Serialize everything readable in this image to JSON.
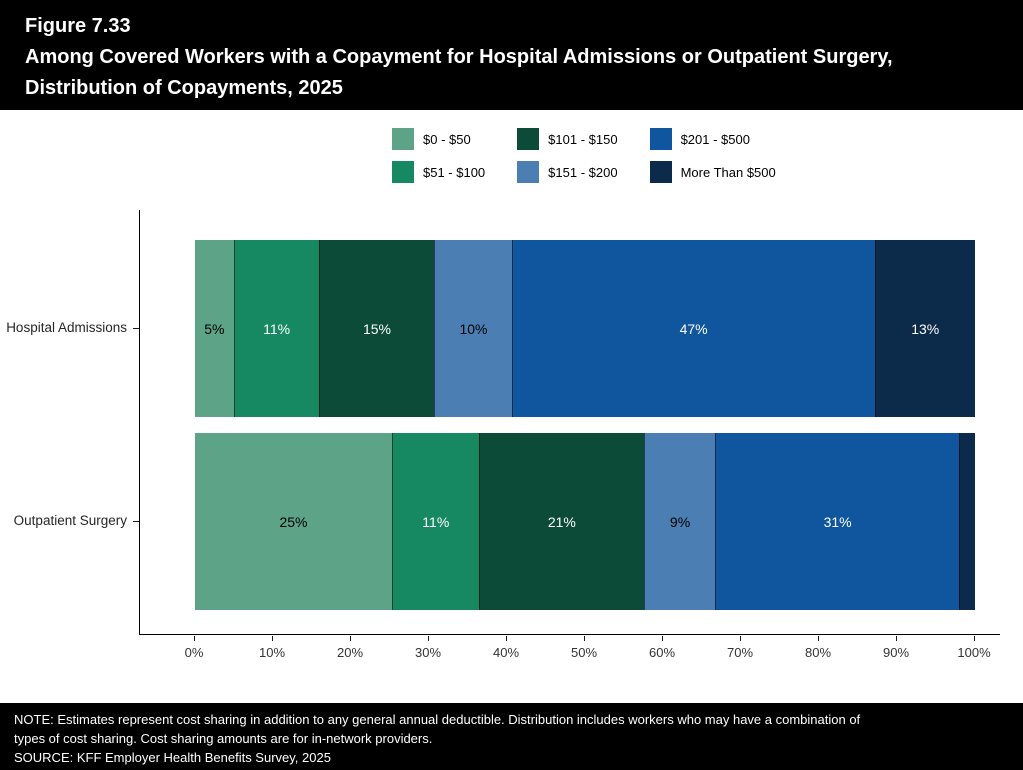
{
  "header": {
    "figure_label": "Figure 7.33",
    "title_line1": "Among Covered Workers with a Copayment for Hospital Admissions or Outpatient Surgery,",
    "title_line2": "Distribution of Copayments, 2025"
  },
  "chart_data": {
    "type": "bar",
    "orientation": "horizontal",
    "stacked": true,
    "grid": false,
    "legend_position": "top",
    "x_axis": {
      "min": 0,
      "max": 100,
      "tick_labels": [
        "0%",
        "10%",
        "20%",
        "30%",
        "40%",
        "50%",
        "60%",
        "70%",
        "80%",
        "90%",
        "100%"
      ]
    },
    "categories": [
      "Hospital Admissions",
      "Outpatient Surgery"
    ],
    "series": [
      {
        "name": "$0 - $50",
        "color": "#5CA388",
        "values": [
          5,
          25
        ]
      },
      {
        "name": "$51 - $100",
        "color": "#178962",
        "values": [
          11,
          11
        ]
      },
      {
        "name": "$101 - $150",
        "color": "#0D4B39",
        "values": [
          15,
          21
        ]
      },
      {
        "name": "$151 - $200",
        "color": "#4B7EB3",
        "values": [
          10,
          9
        ]
      },
      {
        "name": "$201 - $500",
        "color": "#0F569E",
        "values": [
          47,
          31
        ]
      },
      {
        "name": "More Than $500",
        "color": "#0C2B4B",
        "values": [
          13,
          2
        ]
      }
    ],
    "data_labels": [
      [
        "5%",
        "11%",
        "15%",
        "10%",
        "47%",
        "13%"
      ],
      [
        "25%",
        "11%",
        "21%",
        "9%",
        "31%",
        ""
      ]
    ],
    "label_colors": [
      [
        "#000000",
        "#FFFFFF",
        "#FFFFFF",
        "#000000",
        "#FFFFFF",
        "#FFFFFF"
      ],
      [
        "#000000",
        "#FFFFFF",
        "#FFFFFF",
        "#000000",
        "#FFFFFF",
        "#FFFFFF"
      ]
    ]
  },
  "footer": {
    "note_line1": "NOTE: Estimates represent cost sharing in addition to any general annual deductible. Distribution includes workers who may have a combination of",
    "note_line2": "types of cost sharing. Cost sharing amounts are for in-network providers.",
    "source": "SOURCE: KFF Employer Health Benefits Survey, 2025"
  }
}
